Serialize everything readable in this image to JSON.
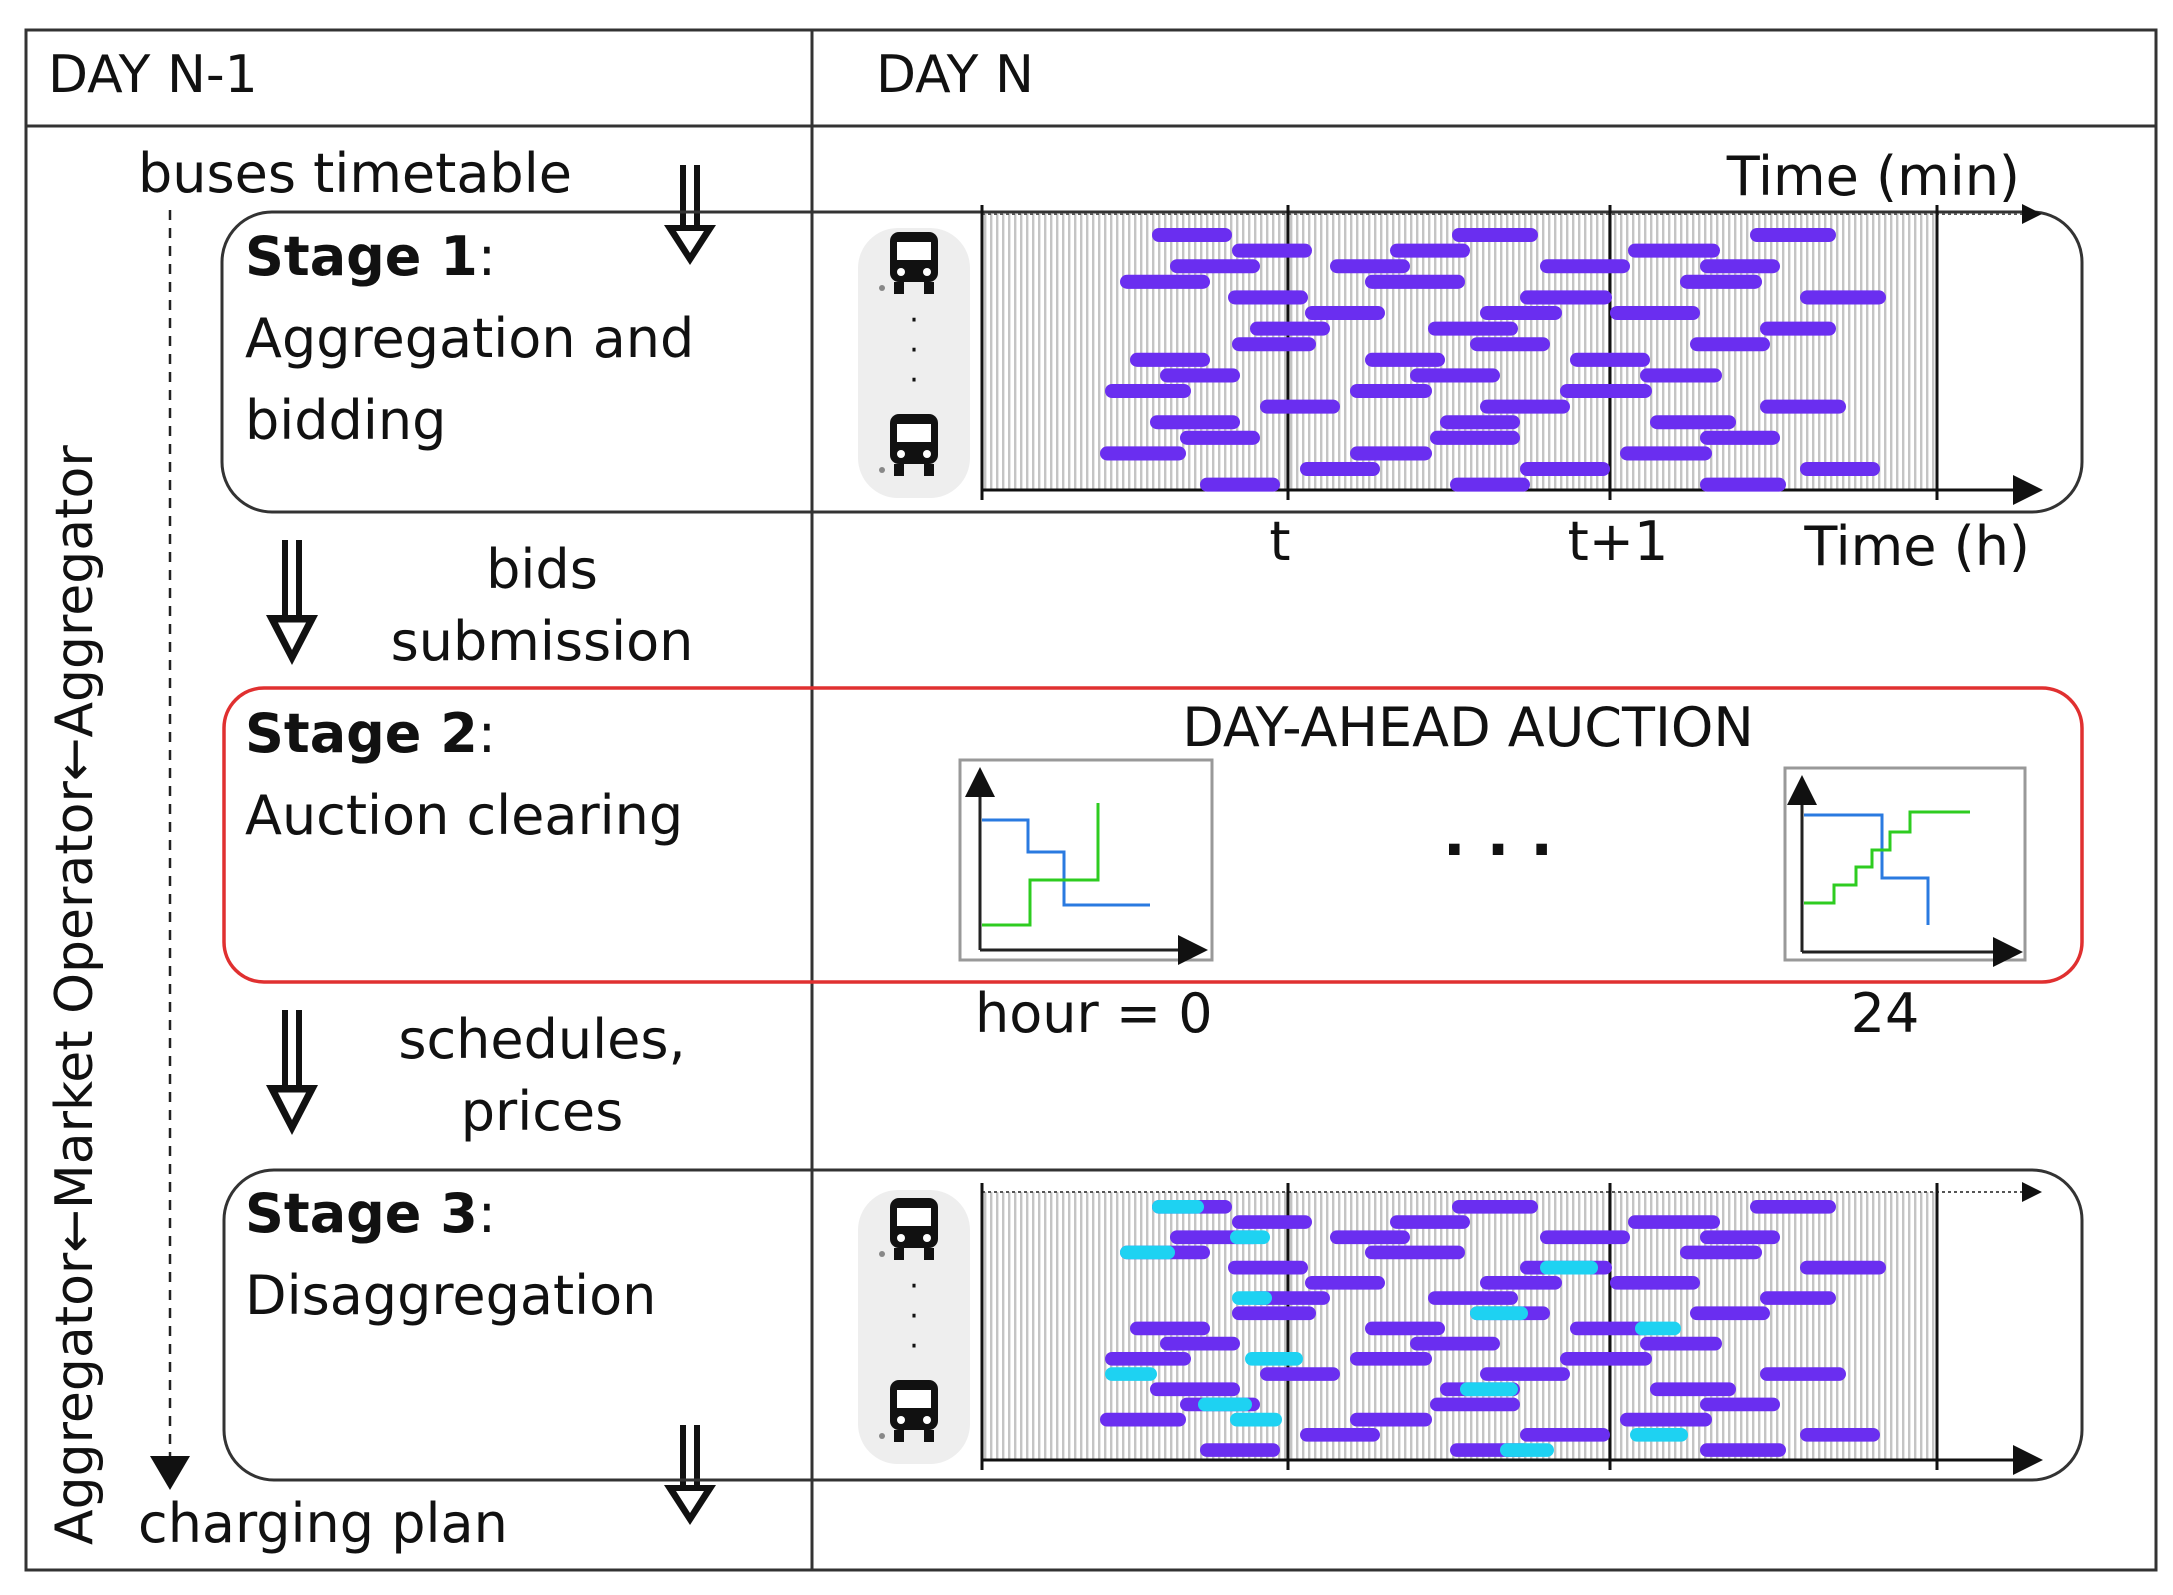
{
  "columns": {
    "left": "DAY N-1",
    "right": "DAY N"
  },
  "vertical_label": "Aggregator←Market Operator←Aggregator",
  "flow": {
    "input": "buses timetable",
    "bids": [
      "bids",
      "submission"
    ],
    "schedules": [
      "schedules,",
      "prices"
    ],
    "output": "charging plan"
  },
  "stage1": {
    "title": "Stage 1",
    "colon": ":",
    "lines": [
      "Aggregation and",
      "bidding"
    ]
  },
  "stage2": {
    "title": "Stage 2",
    "colon": ":",
    "lines": [
      "Auction clearing"
    ]
  },
  "stage3": {
    "title": "Stage 3",
    "colon": ":",
    "lines": [
      "Disaggregation"
    ]
  },
  "timeline": {
    "top_axis": "Time (min)",
    "bottom_axis": "Time (h)",
    "ticks": [
      "t",
      "t+1"
    ]
  },
  "auction": {
    "title": "DAY-AHEAD AUCTION",
    "first_hour": "hour = 0",
    "last_hour": "24",
    "ellipsis": ". . ."
  },
  "colors": {
    "scheduled": "#6a2ef0",
    "charging": "#1ed2f2",
    "auction_border": "#e03030",
    "supply": "#2ecc20",
    "demand": "#2a7ae0"
  }
}
